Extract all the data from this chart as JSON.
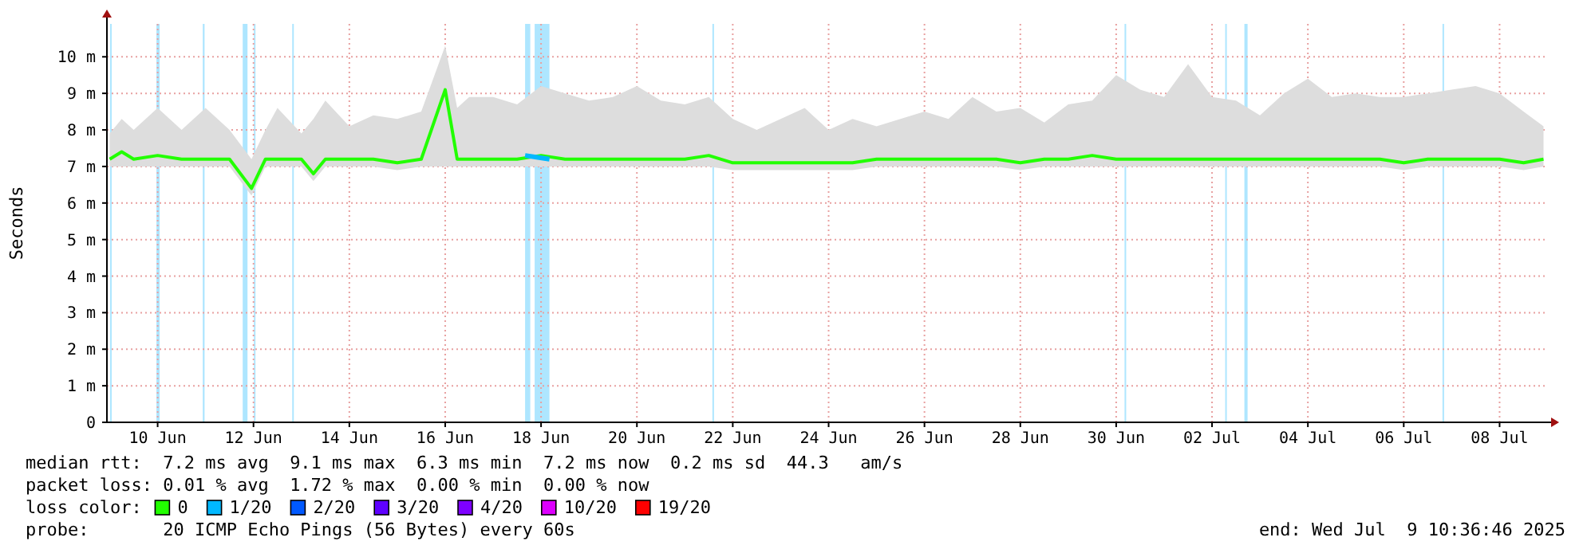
{
  "chart_data": {
    "type": "line",
    "ylabel": "Seconds",
    "legend_title": "loss color:",
    "legend": "bottom",
    "grid": true,
    "xlim": [
      "2025-06-09T10:36",
      "2025-07-09T10:36"
    ],
    "xticks": [
      {
        "value": "2025-06-10T12:00",
        "label": "10 Jun"
      },
      {
        "value": "2025-06-12T12:00",
        "label": "12 Jun"
      },
      {
        "value": "2025-06-14T12:00",
        "label": "14 Jun"
      },
      {
        "value": "2025-06-16T12:00",
        "label": "16 Jun"
      },
      {
        "value": "2025-06-18T12:00",
        "label": "18 Jun"
      },
      {
        "value": "2025-06-20T12:00",
        "label": "20 Jun"
      },
      {
        "value": "2025-06-22T12:00",
        "label": "22 Jun"
      },
      {
        "value": "2025-06-24T12:00",
        "label": "24 Jun"
      },
      {
        "value": "2025-06-26T12:00",
        "label": "26 Jun"
      },
      {
        "value": "2025-06-28T12:00",
        "label": "28 Jun"
      },
      {
        "value": "2025-06-30T12:00",
        "label": "30 Jun"
      },
      {
        "value": "2025-07-02T12:00",
        "label": "02 Jul"
      },
      {
        "value": "2025-07-04T12:00",
        "label": "04 Jul"
      },
      {
        "value": "2025-07-06T12:00",
        "label": "06 Jul"
      },
      {
        "value": "2025-07-08T12:00",
        "label": "08 Jul"
      }
    ],
    "ylim": [
      0,
      10.9
    ],
    "yticks": [
      0,
      {
        "value": 1,
        "label": "1 m"
      },
      {
        "value": 2,
        "label": "2 m"
      },
      {
        "value": 3,
        "label": "3 m"
      },
      {
        "value": 4,
        "label": "4 m"
      },
      {
        "value": 5,
        "label": "5 m"
      },
      {
        "value": 6,
        "label": "6 m"
      },
      {
        "value": 7,
        "label": "7 m"
      },
      {
        "value": 8,
        "label": "8 m"
      },
      {
        "value": 9,
        "label": "9 m"
      },
      {
        "value": 10,
        "label": "10 m"
      }
    ],
    "x": [
      "2025-06-09T12:00",
      "2025-06-09T18:00",
      "2025-06-10T00:00",
      "2025-06-10T12:00",
      "2025-06-11T00:00",
      "2025-06-11T12:00",
      "2025-06-12T00:00",
      "2025-06-12T11:00",
      "2025-06-12T18:00",
      "2025-06-13T00:00",
      "2025-06-13T12:00",
      "2025-06-13T18:00",
      "2025-06-14T00:00",
      "2025-06-14T12:00",
      "2025-06-15T00:00",
      "2025-06-15T12:00",
      "2025-06-16T00:00",
      "2025-06-16T12:00",
      "2025-06-16T18:00",
      "2025-06-17T00:00",
      "2025-06-17T12:00",
      "2025-06-18T00:00",
      "2025-06-18T12:00",
      "2025-06-19T00:00",
      "2025-06-19T12:00",
      "2025-06-20T00:00",
      "2025-06-20T12:00",
      "2025-06-21T00:00",
      "2025-06-21T12:00",
      "2025-06-22T00:00",
      "2025-06-22T12:00",
      "2025-06-23T00:00",
      "2025-06-23T12:00",
      "2025-06-24T00:00",
      "2025-06-24T12:00",
      "2025-06-25T00:00",
      "2025-06-25T12:00",
      "2025-06-26T00:00",
      "2025-06-26T12:00",
      "2025-06-27T00:00",
      "2025-06-27T12:00",
      "2025-06-28T00:00",
      "2025-06-28T12:00",
      "2025-06-29T00:00",
      "2025-06-29T12:00",
      "2025-06-30T00:00",
      "2025-06-30T12:00",
      "2025-07-01T00:00",
      "2025-07-01T12:00",
      "2025-07-02T00:00",
      "2025-07-02T12:00",
      "2025-07-03T00:00",
      "2025-07-03T12:00",
      "2025-07-04T00:00",
      "2025-07-04T12:00",
      "2025-07-05T00:00",
      "2025-07-05T12:00",
      "2025-07-06T00:00",
      "2025-07-06T12:00",
      "2025-07-07T00:00",
      "2025-07-07T12:00",
      "2025-07-08T00:00",
      "2025-07-08T12:00",
      "2025-07-09T00:00",
      "2025-07-09T10:00"
    ],
    "series": [
      {
        "name": "0",
        "color": "#22ff00",
        "upper": [
          7.9,
          8.3,
          8.0,
          8.6,
          8.0,
          8.6,
          8.0,
          7.2,
          8.0,
          8.6,
          7.9,
          8.3,
          8.8,
          8.1,
          8.4,
          8.3,
          8.5,
          10.3,
          8.6,
          8.9,
          8.9,
          8.7,
          9.2,
          9.0,
          8.8,
          8.9,
          9.2,
          8.8,
          8.7,
          8.9,
          8.3,
          8.0,
          8.3,
          8.6,
          8.0,
          8.3,
          8.1,
          8.3,
          8.5,
          8.3,
          8.9,
          8.5,
          8.6,
          8.2,
          8.7,
          8.8,
          9.5,
          9.1,
          8.9,
          9.8,
          8.9,
          8.8,
          8.4,
          9.0,
          9.4,
          8.9,
          9.0,
          8.9,
          8.9,
          9.0,
          9.1,
          9.2,
          9.0,
          8.5,
          8.1
        ],
        "lower": [
          7.0,
          7.0,
          7.0,
          7.0,
          7.0,
          7.0,
          7.0,
          6.2,
          7.0,
          7.0,
          7.0,
          6.6,
          7.0,
          7.0,
          7.0,
          6.9,
          7.0,
          7.0,
          7.0,
          7.0,
          7.0,
          7.0,
          7.0,
          7.0,
          7.0,
          7.0,
          7.0,
          7.0,
          7.0,
          7.0,
          6.9,
          6.9,
          6.9,
          6.9,
          6.9,
          6.9,
          7.0,
          7.0,
          7.0,
          7.0,
          7.0,
          7.0,
          6.9,
          7.0,
          7.0,
          7.0,
          7.0,
          7.0,
          7.0,
          7.0,
          7.0,
          7.0,
          7.0,
          7.0,
          7.0,
          7.0,
          7.0,
          7.0,
          6.9,
          7.0,
          7.0,
          7.0,
          7.0,
          6.9,
          7.0
        ],
        "values": [
          7.2,
          7.4,
          7.2,
          7.3,
          7.2,
          7.2,
          7.2,
          6.4,
          7.2,
          7.2,
          7.2,
          6.8,
          7.2,
          7.2,
          7.2,
          7.1,
          7.2,
          9.1,
          7.2,
          7.2,
          7.2,
          7.2,
          7.3,
          7.2,
          7.2,
          7.2,
          7.2,
          7.2,
          7.2,
          7.3,
          7.1,
          7.1,
          7.1,
          7.1,
          7.1,
          7.1,
          7.2,
          7.2,
          7.2,
          7.2,
          7.2,
          7.2,
          7.1,
          7.2,
          7.2,
          7.3,
          7.2,
          7.2,
          7.2,
          7.2,
          7.2,
          7.2,
          7.2,
          7.2,
          7.2,
          7.2,
          7.2,
          7.2,
          7.1,
          7.2,
          7.2,
          7.2,
          7.2,
          7.1,
          7.2
        ]
      },
      {
        "name": "1/20",
        "color": "#00b8ff",
        "x": [
          "2025-06-18T04:00",
          "2025-06-18T16:12"
        ],
        "values": [
          7.3,
          7.2
        ]
      },
      {
        "name": "2/20",
        "color": "#0059ff",
        "values": [
          null,
          null,
          null,
          null,
          null,
          null,
          null,
          null,
          null,
          null,
          null,
          null,
          null,
          null,
          null,
          null,
          null,
          null,
          null,
          null,
          null,
          null,
          null,
          null,
          null,
          null,
          null,
          null,
          null,
          null,
          null,
          null,
          null,
          null,
          null,
          null,
          null,
          null,
          null,
          null,
          null,
          null,
          null,
          null,
          null,
          null,
          null,
          null,
          null,
          null,
          null,
          null,
          null,
          null,
          null,
          null,
          null,
          null,
          null,
          null,
          null,
          null,
          null,
          null,
          null
        ]
      },
      {
        "name": "3/20",
        "color": "#5e00ff",
        "values": [
          null,
          null,
          null,
          null,
          null,
          null,
          null,
          null,
          null,
          null,
          null,
          null,
          null,
          null,
          null,
          null,
          null,
          null,
          null,
          null,
          null,
          null,
          null,
          null,
          null,
          null,
          null,
          null,
          null,
          null,
          null,
          null,
          null,
          null,
          null,
          null,
          null,
          null,
          null,
          null,
          null,
          null,
          null,
          null,
          null,
          null,
          null,
          null,
          null,
          null,
          null,
          null,
          null,
          null,
          null,
          null,
          null,
          null,
          null,
          null,
          null,
          null,
          null,
          null,
          null
        ]
      },
      {
        "name": "4/20",
        "color": "#7e00ff",
        "values": [
          null,
          null,
          null,
          null,
          null,
          null,
          null,
          null,
          null,
          null,
          null,
          null,
          null,
          null,
          null,
          null,
          null,
          null,
          null,
          null,
          null,
          null,
          null,
          null,
          null,
          null,
          null,
          null,
          null,
          null,
          null,
          null,
          null,
          null,
          null,
          null,
          null,
          null,
          null,
          null,
          null,
          null,
          null,
          null,
          null,
          null,
          null,
          null,
          null,
          null,
          null,
          null,
          null,
          null,
          null,
          null,
          null,
          null,
          null,
          null,
          null,
          null,
          null,
          null,
          null
        ]
      },
      {
        "name": "10/20",
        "color": "#dd00ff",
        "values": [
          null,
          null,
          null,
          null,
          null,
          null,
          null,
          null,
          null,
          null,
          null,
          null,
          null,
          null,
          null,
          null,
          null,
          null,
          null,
          null,
          null,
          null,
          null,
          null,
          null,
          null,
          null,
          null,
          null,
          null,
          null,
          null,
          null,
          null,
          null,
          null,
          null,
          null,
          null,
          null,
          null,
          null,
          null,
          null,
          null,
          null,
          null,
          null,
          null,
          null,
          null,
          null,
          null,
          null,
          null,
          null,
          null,
          null,
          null,
          null,
          null,
          null,
          null,
          null,
          null
        ]
      },
      {
        "name": "19/20",
        "color": "#ff0000",
        "values": [
          null,
          null,
          null,
          null,
          null,
          null,
          null,
          null,
          null,
          null,
          null,
          null,
          null,
          null,
          null,
          null,
          null,
          null,
          null,
          null,
          null,
          null,
          null,
          null,
          null,
          null,
          null,
          null,
          null,
          null,
          null,
          null,
          null,
          null,
          null,
          null,
          null,
          null,
          null,
          null,
          null,
          null,
          null,
          null,
          null,
          null,
          null,
          null,
          null,
          null,
          null,
          null,
          null,
          null,
          null,
          null,
          null,
          null,
          null,
          null,
          null,
          null,
          null,
          null,
          null
        ]
      }
    ],
    "bands": [
      {
        "axis": "x",
        "from": "2025-06-09T12:12",
        "to": "2025-06-09T13:00",
        "color": "#aee6ff"
      },
      {
        "axis": "x",
        "from": "2025-06-10T11:24",
        "to": "2025-06-10T13:00",
        "color": "#aee6ff"
      },
      {
        "axis": "x",
        "from": "2025-06-11T10:36",
        "to": "2025-06-11T11:30",
        "color": "#aee6ff"
      },
      {
        "axis": "x",
        "from": "2025-06-12T06:36",
        "to": "2025-06-12T09:00",
        "color": "#aee6ff"
      },
      {
        "axis": "x",
        "from": "2025-06-12T12:12",
        "to": "2025-06-12T13:00",
        "color": "#aee6ff"
      },
      {
        "axis": "x",
        "from": "2025-06-13T07:24",
        "to": "2025-06-13T08:12",
        "color": "#aee6ff"
      },
      {
        "axis": "x",
        "from": "2025-06-18T04:00",
        "to": "2025-06-18T06:36",
        "color": "#aee6ff"
      },
      {
        "axis": "x",
        "from": "2025-06-18T08:48",
        "to": "2025-06-18T16:12",
        "color": "#aee6ff"
      },
      {
        "axis": "x",
        "from": "2025-06-22T01:48",
        "to": "2025-06-22T02:36",
        "color": "#aee6ff"
      },
      {
        "axis": "x",
        "from": "2025-06-30T16:12",
        "to": "2025-06-30T17:00",
        "color": "#aee6ff"
      },
      {
        "axis": "x",
        "from": "2025-07-02T18:36",
        "to": "2025-07-02T19:24",
        "color": "#aee6ff"
      },
      {
        "axis": "x",
        "from": "2025-07-03T04:12",
        "to": "2025-07-03T05:48",
        "color": "#aee6ff"
      },
      {
        "axis": "x",
        "from": "2025-07-07T07:24",
        "to": "2025-07-07T08:12",
        "color": "#aee6ff"
      }
    ],
    "annotations": [
      "median rtt:  7.2 ms avg  9.1 ms max  6.3 ms min  7.2 ms now  0.2 ms sd  44.3   am/s",
      "packet loss: 0.01 % avg  1.72 % max  0.00 % min  0.00 % now",
      "probe:       20 ICMP Echo Pings (56 Bytes) every 60s",
      "end: Wed Jul  9 10:36:46 2025"
    ]
  }
}
